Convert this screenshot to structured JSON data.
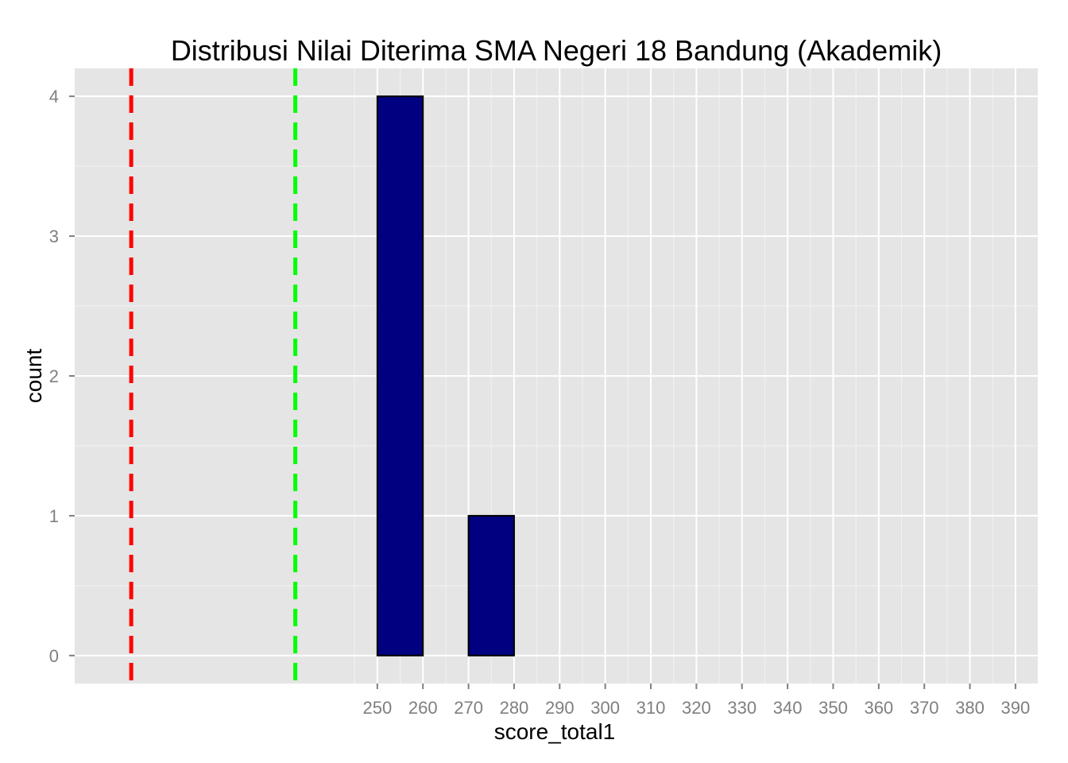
{
  "chart_data": {
    "type": "bar",
    "title": "Distribusi Nilai Diterima SMA Negeri 18 Bandung (Akademik)",
    "xlabel": "score_total1",
    "ylabel": "count",
    "bins": [
      {
        "from": 250,
        "to": 260,
        "count": 4
      },
      {
        "from": 260,
        "to": 270,
        "count": 0
      },
      {
        "from": 270,
        "to": 280,
        "count": 1
      },
      {
        "from": 280,
        "to": 290,
        "count": 0
      },
      {
        "from": 290,
        "to": 300,
        "count": 0
      },
      {
        "from": 300,
        "to": 310,
        "count": 0
      },
      {
        "from": 310,
        "to": 320,
        "count": 0
      },
      {
        "from": 320,
        "to": 330,
        "count": 0
      },
      {
        "from": 330,
        "to": 340,
        "count": 0
      },
      {
        "from": 340,
        "to": 350,
        "count": 0
      },
      {
        "from": 350,
        "to": 360,
        "count": 0
      },
      {
        "from": 360,
        "to": 370,
        "count": 0
      },
      {
        "from": 370,
        "to": 380,
        "count": 0
      },
      {
        "from": 380,
        "to": 390,
        "count": 0
      }
    ],
    "x_ticks": [
      "250",
      "260",
      "270",
      "280",
      "290",
      "300",
      "310",
      "320",
      "330",
      "340",
      "350",
      "360",
      "370",
      "380",
      "390"
    ],
    "y_ticks": [
      "0",
      "1",
      "2",
      "3",
      "4"
    ],
    "xlim": [
      183.6,
      394.9
    ],
    "ylim": [
      -0.2,
      4.2
    ],
    "reference_lines": [
      {
        "x": 196,
        "color": "#ff0000",
        "style": "dashed"
      },
      {
        "x": 232,
        "color": "#00ff00",
        "style": "dashed"
      }
    ],
    "bar_fill": "#000080",
    "bar_outline": "#000000",
    "panel_background": "#e5e5e5",
    "grid": true
  }
}
